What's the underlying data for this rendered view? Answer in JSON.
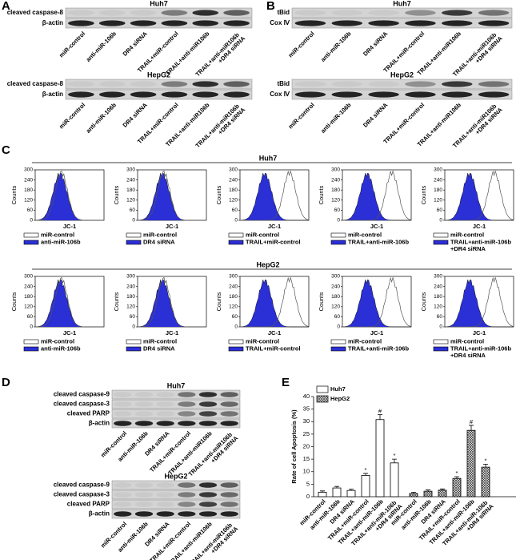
{
  "figure": {
    "a": {
      "letter": "A",
      "lanes": [
        "miR-control",
        "anti-miR-106b",
        "DR4 siRNA",
        "TRAIL+miR-control",
        "TRAIL+anti-miR106b",
        "TRAIL+anti-miR106b +DR4 siRNA"
      ],
      "blots": [
        {
          "cell": "Huh7",
          "bands": [
            "cleaved caspase-8",
            "β-actin"
          ]
        },
        {
          "cell": "HepG2",
          "bands": [
            "cleaved caspase-8",
            "β-actin"
          ]
        }
      ]
    },
    "b": {
      "letter": "B",
      "lanes": [
        "miR-control",
        "anti-miR-106b",
        "DR4 siRNA",
        "TRAIL+miR-control",
        "TRAIL+anti-miR106b",
        "TRAIL+anti-miR106b +DR4 siRNA"
      ],
      "blots": [
        {
          "cell": "Huh7",
          "bands": [
            "tBid",
            "Cox Ⅳ"
          ]
        },
        {
          "cell": "HepG2",
          "bands": [
            "tBid",
            "Cox Ⅳ"
          ]
        }
      ]
    },
    "c": {
      "letter": "C",
      "y_label": "Counts",
      "x_label": "JC-1",
      "yticks": [
        0,
        60,
        120,
        180,
        240,
        300
      ],
      "control": "miR-control",
      "rows": [
        {
          "cell": "Huh7",
          "treatments": [
            "anti-miR-106b",
            "DR4 siRNA",
            "TRAIL+miR-control",
            "TRAIL+anti-miR-106b",
            "TRAIL+anti-miR-106b +DR4 siRNA"
          ]
        },
        {
          "cell": "HepG2",
          "treatments": [
            "anti-miR-106b",
            "DR4 siRNA",
            "TRAIL+miR-control",
            "TRAIL+anti-miR-106b",
            "TRAIL+anti-miR-106b +DR4 siRNA"
          ]
        }
      ]
    },
    "d": {
      "letter": "D",
      "lanes": [
        "miR-control",
        "anti-miR-106b",
        "DR4 siRNA",
        "TRAIL+miR-control",
        "TRAIL+anti-miR106b",
        "TRAIL+anti-miR106b +DR4 siRNA"
      ],
      "blots": [
        {
          "cell": "Huh7",
          "bands": [
            "cleaved caspase-9",
            "cleaved caspase-3",
            "cleaved PARP",
            "β-actin"
          ]
        },
        {
          "cell": "HepG2",
          "bands": [
            "cleaved caspase-9",
            "cleaved caspase-3",
            "cleaved PARP",
            "β-actin"
          ]
        }
      ]
    }
  },
  "chart_data": {
    "type": "bar",
    "letter": "E",
    "y_label": "Rate of cell Apoptosis (%)",
    "categories": [
      "miR-control",
      "anti-miR-106b",
      "DR4 siRNA",
      "TRAIL+miR-control",
      "TRAIL+anti-miR-106b",
      "TRAIL+anti-miR-106b +DR4 siRNA"
    ],
    "series": [
      {
        "name": "Huh7",
        "color": "#ffffff",
        "hatch": false,
        "values": [
          1.8,
          3.5,
          2.5,
          8.5,
          30.8,
          13.5
        ],
        "errors": [
          0.5,
          0.6,
          0.5,
          0.8,
          2.0,
          1.5
        ],
        "annotations": [
          null,
          null,
          null,
          "*",
          "#",
          "*"
        ]
      },
      {
        "name": "HepG2",
        "color": "#ffffff",
        "hatch": true,
        "values": [
          1.3,
          2.2,
          2.6,
          7.3,
          26.5,
          11.8
        ],
        "errors": [
          0.5,
          0.5,
          0.5,
          0.7,
          2.0,
          1.2
        ],
        "annotations": [
          null,
          null,
          null,
          "*",
          "#",
          "*"
        ]
      }
    ],
    "ylim": [
      0,
      40
    ],
    "yticks": [
      0,
      5,
      10,
      15,
      20,
      25,
      30,
      35,
      40
    ]
  }
}
